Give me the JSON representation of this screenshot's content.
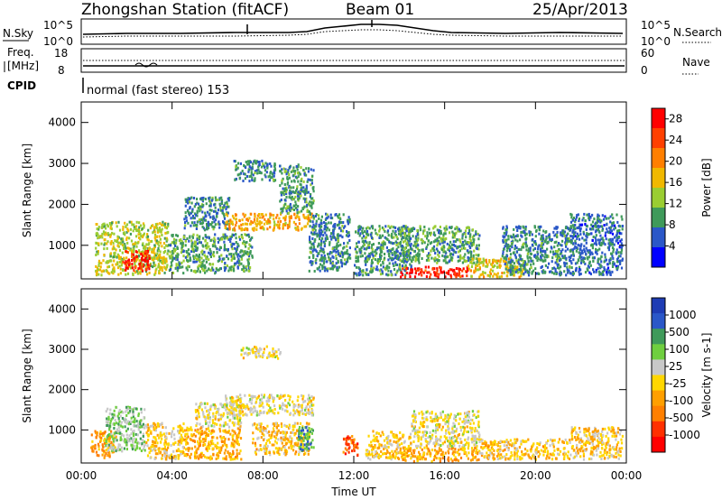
{
  "header": {
    "station": "Zhongshan Station (fitACF)",
    "beam": "Beam 01",
    "date": "25/Apr/2013"
  },
  "noise_panel": {
    "left_label": "N.Sky",
    "left_top_tick": "10^5",
    "left_bottom_tick": "10^0",
    "right_top_tick": "10^5",
    "right_bottom_tick": "10^0",
    "right_label": "N.Search"
  },
  "freq_panel": {
    "label_line1": "Freq.",
    "label_line2": "[MHz]",
    "top_tick": "18",
    "bottom_tick": "8",
    "right_top_tick": "60",
    "right_bottom_tick": "0",
    "right_label": "Nave"
  },
  "cpid": {
    "label": "CPID",
    "text": "normal (fast stereo) 153"
  },
  "colors": {
    "power_scale": [
      "#0000ff",
      "#2a57c8",
      "#3f9a5a",
      "#9acd32",
      "#f0b800",
      "#ff7f00",
      "#ff4000",
      "#ff0000"
    ],
    "velocity_scale": [
      "#1e3cb4",
      "#2a57c8",
      "#3f9a5a",
      "#6fcf3f",
      "#c8c8c8",
      "#ffd700",
      "#ff9f00",
      "#ff7f00",
      "#ff3000",
      "#ff0000"
    ]
  },
  "chart_data": [
    {
      "type": "heatmap",
      "title": "",
      "xlabel": "",
      "ylabel": "Slant Range [km]",
      "xlim": [
        0,
        24
      ],
      "ylim": [
        180,
        4500
      ],
      "x_ticks": [
        "00:00",
        "04:00",
        "08:00",
        "12:00",
        "16:00",
        "20:00",
        "00:00"
      ],
      "y_ticks": [
        "1000",
        "2000",
        "3000",
        "4000"
      ],
      "colorbar": {
        "label": "Power [dB]",
        "ticks": [
          "4",
          "8",
          "12",
          "16",
          "20",
          "24",
          "28"
        ],
        "range": [
          0,
          30
        ]
      },
      "regions": [
        {
          "x": [
            0.6,
            3.8
          ],
          "y": [
            300,
            1600
          ],
          "value": 14
        },
        {
          "x": [
            1.8,
            3.0
          ],
          "y": [
            400,
            900
          ],
          "value": 26
        },
        {
          "x": [
            3.8,
            6.0
          ],
          "y": [
            350,
            1300
          ],
          "value": 10
        },
        {
          "x": [
            4.5,
            6.5
          ],
          "y": [
            1400,
            2200
          ],
          "value": 8
        },
        {
          "x": [
            6.0,
            7.5
          ],
          "y": [
            400,
            1300
          ],
          "value": 9
        },
        {
          "x": [
            6.3,
            10.2
          ],
          "y": [
            1400,
            1800
          ],
          "value": 18
        },
        {
          "x": [
            6.7,
            8.5
          ],
          "y": [
            2600,
            3100
          ],
          "value": 8
        },
        {
          "x": [
            8.7,
            10.2
          ],
          "y": [
            1800,
            3000
          ],
          "value": 9
        },
        {
          "x": [
            10.0,
            11.8
          ],
          "y": [
            400,
            1800
          ],
          "value": 8
        },
        {
          "x": [
            12.0,
            14.5
          ],
          "y": [
            300,
            1500
          ],
          "value": 9
        },
        {
          "x": [
            14.0,
            17.0
          ],
          "y": [
            250,
            500
          ],
          "value": 26
        },
        {
          "x": [
            14.0,
            17.5
          ],
          "y": [
            600,
            1500
          ],
          "value": 10
        },
        {
          "x": [
            17.0,
            19.5
          ],
          "y": [
            250,
            700
          ],
          "value": 16
        },
        {
          "x": [
            18.5,
            21.5
          ],
          "y": [
            300,
            1500
          ],
          "value": 8
        },
        {
          "x": [
            21.5,
            23.8
          ],
          "y": [
            300,
            1800
          ],
          "value": 7
        }
      ]
    },
    {
      "type": "heatmap",
      "title": "",
      "xlabel": "Time UT",
      "ylabel": "Slant Range [km]",
      "xlim": [
        0,
        24
      ],
      "ylim": [
        180,
        4500
      ],
      "x_ticks": [
        "00:00",
        "04:00",
        "08:00",
        "12:00",
        "16:00",
        "20:00",
        "00:00"
      ],
      "y_ticks": [
        "1000",
        "2000",
        "3000",
        "4000"
      ],
      "colorbar": {
        "label": "Velocity [m s-1]",
        "ticks": [
          "1000",
          "500",
          "100",
          "25",
          "-25",
          "-100",
          "-500",
          "-1000"
        ],
        "range": [
          -1200,
          1200
        ]
      },
      "regions": [
        {
          "x": [
            0.4,
            1.5
          ],
          "y": [
            300,
            1000
          ],
          "value": -400
        },
        {
          "x": [
            1.0,
            2.8
          ],
          "y": [
            500,
            1600
          ],
          "value": 300
        },
        {
          "x": [
            2.8,
            4.5
          ],
          "y": [
            300,
            1200
          ],
          "value": -150
        },
        {
          "x": [
            4.5,
            7.0
          ],
          "y": [
            300,
            1100
          ],
          "value": -300
        },
        {
          "x": [
            5.0,
            7.0
          ],
          "y": [
            1100,
            1700
          ],
          "value": 0
        },
        {
          "x": [
            6.3,
            10.2
          ],
          "y": [
            1400,
            1900
          ],
          "value": 0
        },
        {
          "x": [
            7.0,
            8.8
          ],
          "y": [
            2800,
            3100
          ],
          "value": 0
        },
        {
          "x": [
            7.5,
            10.0
          ],
          "y": [
            400,
            1200
          ],
          "value": -200
        },
        {
          "x": [
            9.5,
            10.2
          ],
          "y": [
            500,
            1100
          ],
          "value": 600
        },
        {
          "x": [
            11.5,
            12.2
          ],
          "y": [
            400,
            900
          ],
          "value": -700
        },
        {
          "x": [
            12.5,
            14.5
          ],
          "y": [
            300,
            1000
          ],
          "value": -150
        },
        {
          "x": [
            14.0,
            17.5
          ],
          "y": [
            250,
            600
          ],
          "value": -300
        },
        {
          "x": [
            14.5,
            17.5
          ],
          "y": [
            600,
            1500
          ],
          "value": 0
        },
        {
          "x": [
            17.5,
            21.5
          ],
          "y": [
            300,
            800
          ],
          "value": -200
        },
        {
          "x": [
            21.5,
            23.8
          ],
          "y": [
            300,
            1100
          ],
          "value": -150
        }
      ]
    }
  ]
}
